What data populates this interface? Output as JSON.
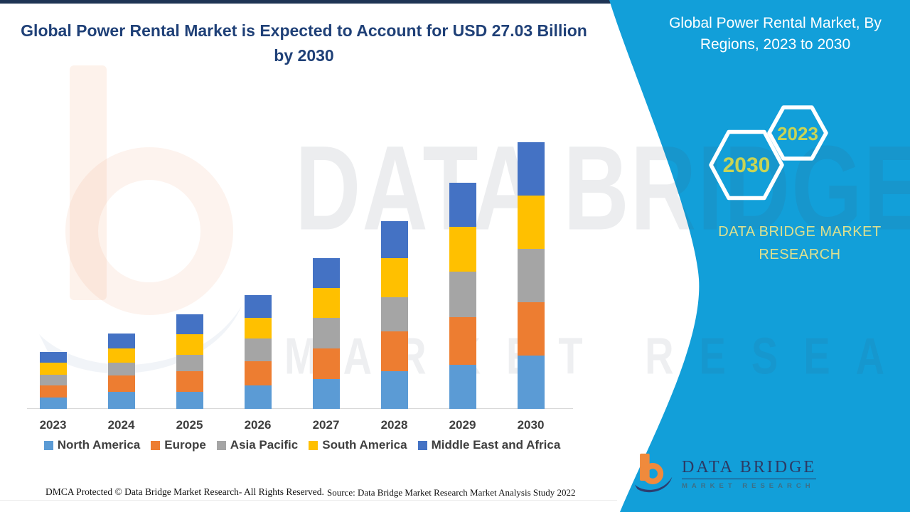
{
  "page": {
    "main_title": "Global Power Rental Market is Expected to Account for USD 27.03 Billion by 2030"
  },
  "banner": {
    "title": "Global Power Rental Market, By Regions, 2023 to 2030",
    "color": "#129FD9",
    "hexagon_back_label": "2030",
    "hexagon_front_label": "2023",
    "brand_line": "DATA BRIDGE MARKET RESEARCH",
    "hex_label_color": "#C8D455"
  },
  "logo": {
    "title": "DATA BRIDGE",
    "subtitle": "MARKET RESEARCH",
    "orange": "#F08A3C",
    "navy": "#2C3E70"
  },
  "watermark": {
    "line1": "DATA BRIDGE",
    "line2": "MARKET RESEARCH"
  },
  "footer": {
    "dmca": "DMCA Protected © Data Bridge Market Research- All Rights Reserved.",
    "source": "Source: Data Bridge Market Research Market Analysis Study 2022"
  },
  "chart_data": {
    "type": "bar",
    "variant": "stacked-vertical",
    "title": "Global Power Rental Market is Expected to Account for USD 27.03 Billion by 2030",
    "unit": "USD Billion",
    "callout_value": "USD 27.03 Billion by 2030",
    "categories": [
      "2023",
      "2024",
      "2025",
      "2026",
      "2027",
      "2028",
      "2029",
      "2030"
    ],
    "series": [
      {
        "name": "North America",
        "color": "#5B9BD5",
        "values": [
          1.15,
          1.7,
          1.75,
          2.4,
          3.05,
          3.85,
          4.5,
          5.41
        ]
      },
      {
        "name": "Europe",
        "color": "#ED7D31",
        "values": [
          1.25,
          1.7,
          2.1,
          2.4,
          3.1,
          4.0,
          4.8,
          5.41
        ]
      },
      {
        "name": "Asia Pacific",
        "color": "#A5A5A5",
        "values": [
          1.05,
          1.3,
          1.6,
          2.3,
          3.1,
          3.5,
          4.6,
          5.4
        ]
      },
      {
        "name": "South America",
        "color": "#FFC000",
        "values": [
          1.25,
          1.45,
          2.1,
          2.1,
          3.0,
          3.9,
          4.55,
          5.4
        ]
      },
      {
        "name": "Middle East and Africa",
        "color": "#4472C4",
        "values": [
          1.1,
          1.5,
          2.05,
          2.3,
          3.05,
          3.8,
          4.45,
          5.41
        ]
      }
    ],
    "totals_estimated": [
      5.8,
      7.65,
      9.6,
      11.5,
      15.3,
      19.05,
      22.9,
      27.03
    ],
    "stack_order_bottom_to_top": [
      "North America",
      "Europe",
      "Asia Pacific",
      "South America",
      "Middle East and Africa"
    ],
    "ylim": [
      0,
      28
    ],
    "gridlines": false,
    "y_axis_visible": false,
    "legend_position": "bottom",
    "axis_line_color": "#D9D9D9"
  }
}
